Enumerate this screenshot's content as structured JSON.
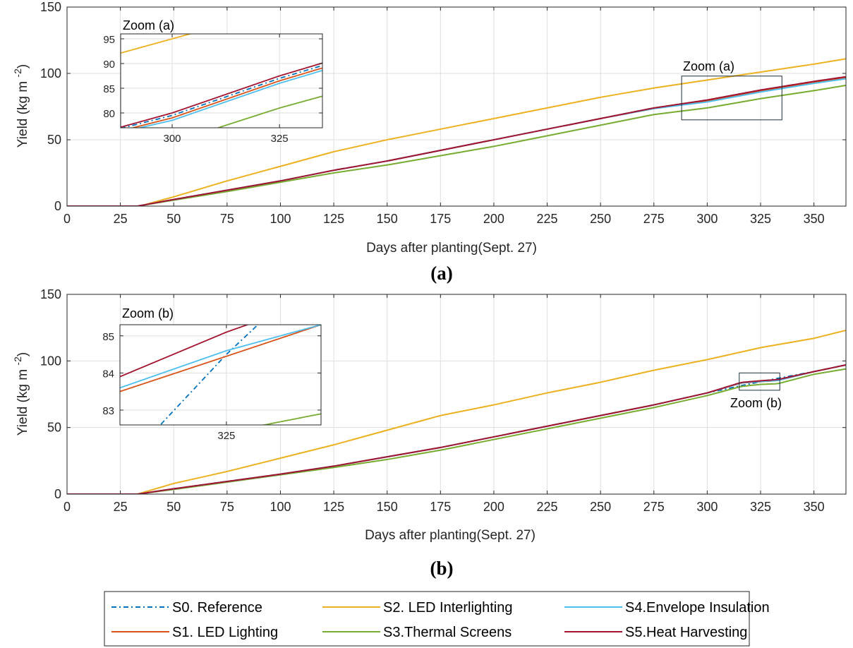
{
  "colors": {
    "S0": "#0072BD",
    "S1": "#D95319",
    "S2": "#EDB120",
    "S3": "#77AC30",
    "S4": "#4DBEEE",
    "S5": "#A2142F"
  },
  "panels": [
    {
      "tag": "(a)",
      "xlabel": "Days after planting(Sept. 27)",
      "ylabel": "Yield (kg m ",
      "ylabel_exp": "-2",
      "ylabel_close": ")",
      "zoom_box_label": "Zoom (a)",
      "inset_title": "Zoom (a)"
    },
    {
      "tag": "(b)",
      "xlabel": "Days after planting(Sept. 27)",
      "ylabel": "Yield (kg m ",
      "ylabel_exp": "-2",
      "ylabel_close": ")",
      "zoom_box_label": "Zoom (b)",
      "inset_title": "Zoom (b)"
    }
  ],
  "legend": [
    {
      "key": "S0",
      "label": "S0. Reference",
      "dash": true
    },
    {
      "key": "S2",
      "label": "S2. LED Interlighting",
      "dash": false
    },
    {
      "key": "S4",
      "label": "S4.Envelope Insulation",
      "dash": false
    },
    {
      "key": "S1",
      "label": "S1. LED Lighting",
      "dash": false
    },
    {
      "key": "S3",
      "label": "S3.Thermal Screens",
      "dash": false
    },
    {
      "key": "S5",
      "label": "S5.Heat Harvesting",
      "dash": false
    }
  ],
  "chart_data": [
    {
      "type": "line",
      "panel": "(a)",
      "xlabel": "Days after planting(Sept. 27)",
      "ylabel": "Yield (kg m -2)",
      "xlim": [
        0,
        365
      ],
      "ylim": [
        0,
        150
      ],
      "xticks": [
        0,
        25,
        50,
        75,
        100,
        125,
        150,
        175,
        200,
        225,
        250,
        275,
        300,
        325,
        350
      ],
      "yticks": [
        0,
        50,
        100,
        150
      ],
      "grid": true,
      "zoom_region": {
        "x": [
          288,
          335
        ],
        "y": [
          65,
          98
        ],
        "label": "Zoom (a)"
      },
      "inset": {
        "title": "Zoom (a)",
        "xlim": [
          288,
          335
        ],
        "ylim": [
          77,
          96
        ],
        "xticks": [
          300,
          325
        ],
        "yticks": [
          80,
          85,
          90,
          95
        ]
      },
      "series": [
        {
          "name": "S0. Reference",
          "key": "S0",
          "dash": true,
          "x": [
            0,
            33,
            50,
            75,
            100,
            125,
            150,
            175,
            200,
            225,
            250,
            275,
            300,
            325,
            350,
            365
          ],
          "y": [
            0,
            0,
            5,
            12,
            19,
            27,
            34,
            42,
            50,
            58,
            66,
            74,
            79.5,
            87,
            93.5,
            97
          ]
        },
        {
          "name": "S1. LED Lighting",
          "key": "S1",
          "dash": false,
          "x": [
            0,
            33,
            50,
            75,
            100,
            125,
            150,
            175,
            200,
            225,
            250,
            275,
            300,
            325,
            350,
            365
          ],
          "y": [
            0,
            0,
            5,
            12,
            19,
            27,
            34,
            42,
            50,
            58,
            66,
            73.5,
            79,
            86.5,
            93,
            96.5
          ]
        },
        {
          "name": "S2. LED Interlighting",
          "key": "S2",
          "dash": false,
          "x": [
            0,
            34,
            50,
            75,
            100,
            125,
            150,
            175,
            200,
            225,
            250,
            275,
            300,
            325,
            350,
            365
          ],
          "y": [
            0,
            0,
            7,
            19,
            30,
            41,
            50,
            58,
            66,
            74,
            82,
            89,
            95,
            101,
            107,
            111
          ]
        },
        {
          "name": "S3.Thermal Screens",
          "key": "S3",
          "dash": false,
          "x": [
            0,
            33,
            50,
            75,
            100,
            125,
            150,
            175,
            200,
            225,
            250,
            275,
            300,
            325,
            350,
            365
          ],
          "y": [
            0,
            0,
            4.5,
            11,
            18,
            25,
            31,
            38,
            45,
            53,
            61,
            69,
            74,
            81,
            87,
            91
          ]
        },
        {
          "name": "S4.Envelope Insulation",
          "key": "S4",
          "dash": false,
          "x": [
            0,
            33,
            50,
            75,
            100,
            125,
            150,
            175,
            200,
            225,
            250,
            275,
            300,
            325,
            350,
            365
          ],
          "y": [
            0,
            0,
            5,
            12,
            19,
            27,
            34,
            42,
            50,
            58,
            66,
            73.5,
            78.5,
            86,
            92.5,
            96
          ]
        },
        {
          "name": "S5.Heat Harvesting",
          "key": "S5",
          "dash": false,
          "x": [
            0,
            33,
            50,
            75,
            100,
            125,
            150,
            175,
            200,
            225,
            250,
            275,
            300,
            325,
            350,
            365
          ],
          "y": [
            0,
            0,
            5,
            12,
            19,
            27,
            34,
            42,
            50,
            58,
            66,
            74,
            80,
            87.5,
            94,
            97.5
          ]
        }
      ]
    },
    {
      "type": "line",
      "panel": "(b)",
      "xlabel": "Days after planting(Sept. 27)",
      "ylabel": "Yield (kg m -2)",
      "xlim": [
        0,
        365
      ],
      "ylim": [
        0,
        150
      ],
      "xticks": [
        0,
        25,
        50,
        75,
        100,
        125,
        150,
        175,
        200,
        225,
        250,
        275,
        300,
        325,
        350
      ],
      "yticks": [
        0,
        50,
        100,
        150
      ],
      "grid": true,
      "zoom_region": {
        "x": [
          315,
          334
        ],
        "y": [
          78,
          91
        ],
        "label": "Zoom (b)"
      },
      "inset": {
        "title": "Zoom (b)",
        "xlim": [
          316,
          333
        ],
        "ylim": [
          82.6,
          85.3
        ],
        "xticks": [
          325
        ],
        "yticks": [
          83,
          84,
          85
        ]
      },
      "series": [
        {
          "name": "S0. Reference",
          "key": "S0",
          "dash": true,
          "x": [
            0,
            33,
            50,
            75,
            100,
            125,
            150,
            175,
            200,
            225,
            250,
            275,
            300,
            325,
            350,
            365
          ],
          "y": [
            0,
            0,
            4,
            9.5,
            15,
            21,
            28,
            35,
            43,
            51,
            59,
            67,
            76,
            84.5,
            92,
            97
          ]
        },
        {
          "name": "S1. LED Lighting",
          "key": "S1",
          "dash": false,
          "x": [
            0,
            33,
            50,
            75,
            100,
            125,
            150,
            175,
            200,
            225,
            250,
            275,
            300,
            316,
            325,
            333,
            350,
            365
          ],
          "y": [
            0,
            0,
            4,
            9.5,
            15,
            21,
            28,
            35,
            43,
            51,
            59,
            67,
            76,
            83.5,
            84.45,
            85.3,
            92,
            97
          ]
        },
        {
          "name": "S2. LED Interlighting",
          "key": "S2",
          "dash": false,
          "x": [
            0,
            33,
            50,
            75,
            100,
            125,
            150,
            175,
            200,
            225,
            250,
            275,
            300,
            325,
            350,
            365
          ],
          "y": [
            0,
            0,
            8,
            17,
            27,
            37,
            48,
            59,
            67,
            76,
            84,
            93,
            101,
            110,
            117,
            123
          ]
        },
        {
          "name": "S3.Thermal Screens",
          "key": "S3",
          "dash": false,
          "x": [
            0,
            33,
            50,
            75,
            100,
            125,
            150,
            175,
            200,
            225,
            250,
            275,
            300,
            316,
            325,
            333,
            350,
            365
          ],
          "y": [
            0,
            0,
            3.5,
            9,
            14.5,
            20,
            26,
            33,
            41,
            49,
            57,
            65,
            74,
            80.9,
            82.4,
            82.9,
            90,
            94
          ]
        },
        {
          "name": "S4.Envelope Insulation",
          "key": "S4",
          "dash": false,
          "x": [
            0,
            33,
            50,
            75,
            100,
            125,
            150,
            175,
            200,
            225,
            250,
            275,
            300,
            316,
            325,
            333,
            350,
            365
          ],
          "y": [
            0,
            0,
            4,
            9.5,
            15,
            21,
            28,
            35,
            43,
            51,
            59,
            67,
            76,
            83.6,
            84.6,
            85.3,
            92,
            97
          ]
        },
        {
          "name": "S5.Heat Harvesting",
          "key": "S5",
          "dash": false,
          "x": [
            0,
            33,
            50,
            75,
            100,
            125,
            150,
            175,
            200,
            225,
            250,
            275,
            300,
            316,
            325,
            333,
            350,
            365
          ],
          "y": [
            0,
            0,
            4,
            9.5,
            15,
            21,
            28,
            35,
            43,
            51,
            59,
            67,
            76,
            83.9,
            85.1,
            86,
            92,
            97
          ]
        }
      ]
    }
  ]
}
